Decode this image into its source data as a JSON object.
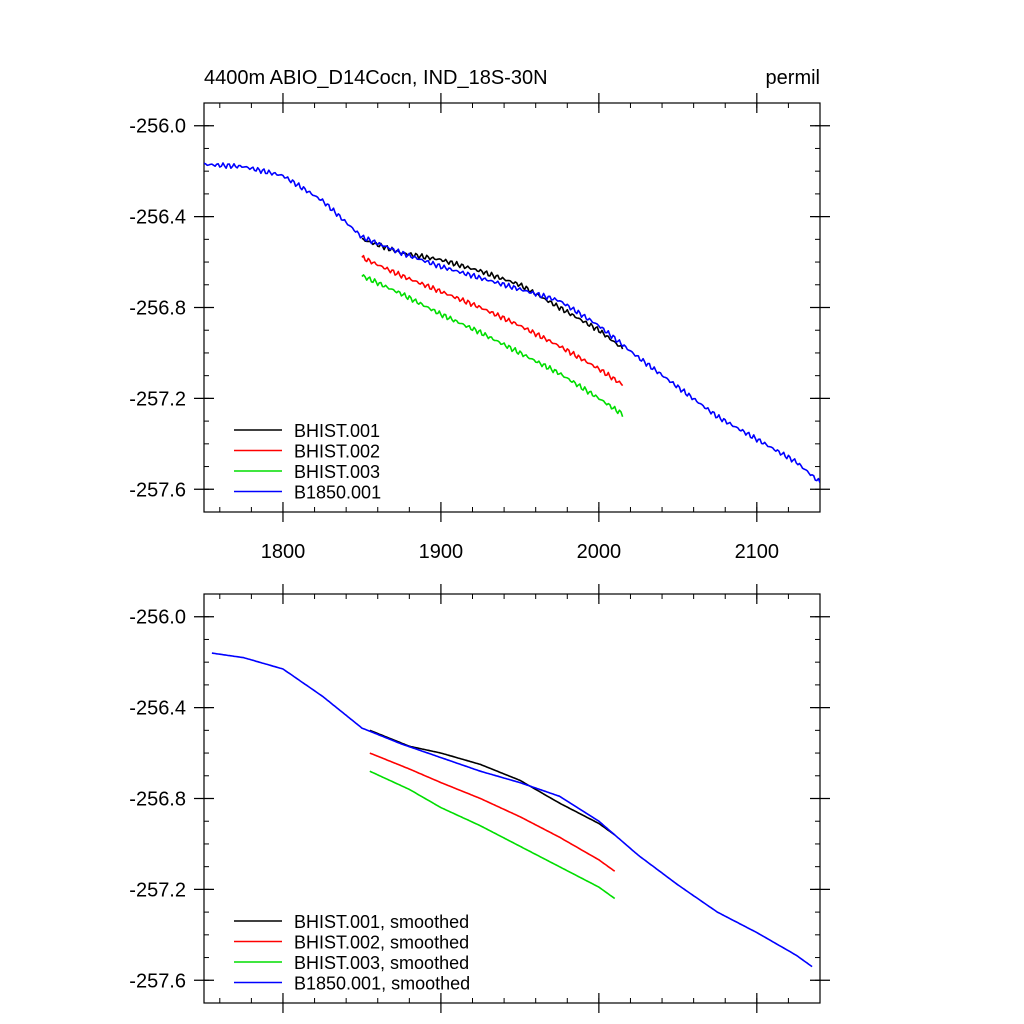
{
  "chart_data": [
    {
      "type": "line",
      "title": "4400m ABIO_D14Cocn, IND_18S-30N",
      "units": "permil",
      "xlim": [
        1750,
        2140
      ],
      "ylim": [
        -257.7,
        -255.9
      ],
      "x_ticks": [
        1800,
        1900,
        2000,
        2100
      ],
      "x_tick_labels": [
        "1800",
        "1900",
        "2000",
        "2100"
      ],
      "y_ticks": [
        -256.0,
        -256.4,
        -256.8,
        -257.2,
        -257.6
      ],
      "y_tick_labels": [
        "-256.0",
        "-256.4",
        "-256.8",
        "-257.2",
        "-257.6"
      ],
      "legend_position": "bottom-left",
      "series": [
        {
          "name": "BHIST.001",
          "color": "#000000",
          "x": [
            1850,
            1875,
            1900,
            1925,
            1950,
            1975,
            2000,
            2015
          ],
          "y": [
            -256.5,
            -256.56,
            -256.59,
            -256.64,
            -256.7,
            -256.8,
            -256.9,
            -256.98
          ],
          "noise": 0.012
        },
        {
          "name": "BHIST.002",
          "color": "#ff0000",
          "x": [
            1850,
            1875,
            1900,
            1925,
            1950,
            1975,
            2000,
            2015
          ],
          "y": [
            -256.58,
            -256.66,
            -256.73,
            -256.8,
            -256.88,
            -256.97,
            -257.07,
            -257.14
          ],
          "noise": 0.012
        },
        {
          "name": "BHIST.003",
          "color": "#00dd00",
          "x": [
            1850,
            1875,
            1900,
            1925,
            1950,
            1975,
            2000,
            2015
          ],
          "y": [
            -256.66,
            -256.74,
            -256.83,
            -256.91,
            -257.0,
            -257.09,
            -257.2,
            -257.27
          ],
          "noise": 0.012
        },
        {
          "name": "B1850.001",
          "color": "#0000ff",
          "x": [
            1750,
            1775,
            1800,
            1825,
            1850,
            1875,
            1900,
            1925,
            1950,
            1975,
            2000,
            2025,
            2050,
            2075,
            2100,
            2125,
            2140
          ],
          "y": [
            -256.17,
            -256.18,
            -256.22,
            -256.33,
            -256.49,
            -256.56,
            -256.62,
            -256.67,
            -256.72,
            -256.77,
            -256.88,
            -257.02,
            -257.15,
            -257.28,
            -257.38,
            -257.48,
            -257.57
          ],
          "noise": 0.012
        }
      ]
    },
    {
      "type": "line",
      "xlim": [
        1750,
        2140
      ],
      "ylim": [
        -257.7,
        -255.9
      ],
      "x_ticks": [
        1800,
        1900,
        2000,
        2100
      ],
      "y_ticks": [
        -256.0,
        -256.4,
        -256.8,
        -257.2,
        -257.6
      ],
      "y_tick_labels": [
        "-256.0",
        "-256.4",
        "-256.8",
        "-257.2",
        "-257.6"
      ],
      "legend_position": "bottom-left",
      "series": [
        {
          "name": "BHIST.001, smoothed",
          "color": "#000000",
          "x": [
            1855,
            1880,
            1900,
            1925,
            1950,
            1975,
            2000,
            2010
          ],
          "y": [
            -256.5,
            -256.57,
            -256.6,
            -256.65,
            -256.72,
            -256.82,
            -256.91,
            -256.96
          ],
          "noise": 0
        },
        {
          "name": "BHIST.002, smoothed",
          "color": "#ff0000",
          "x": [
            1855,
            1880,
            1900,
            1925,
            1950,
            1975,
            2000,
            2010
          ],
          "y": [
            -256.6,
            -256.67,
            -256.73,
            -256.8,
            -256.88,
            -256.97,
            -257.07,
            -257.12
          ],
          "noise": 0
        },
        {
          "name": "BHIST.003, smoothed",
          "color": "#00dd00",
          "x": [
            1855,
            1880,
            1900,
            1925,
            1950,
            1975,
            2000,
            2010
          ],
          "y": [
            -256.68,
            -256.76,
            -256.84,
            -256.92,
            -257.01,
            -257.1,
            -257.19,
            -257.24
          ],
          "noise": 0
        },
        {
          "name": "B1850.001, smoothed",
          "color": "#0000ff",
          "x": [
            1755,
            1775,
            1800,
            1825,
            1850,
            1875,
            1900,
            1925,
            1950,
            1975,
            2000,
            2025,
            2050,
            2075,
            2100,
            2125,
            2135
          ],
          "y": [
            -256.16,
            -256.18,
            -256.23,
            -256.35,
            -256.49,
            -256.56,
            -256.62,
            -256.68,
            -256.73,
            -256.79,
            -256.9,
            -257.05,
            -257.18,
            -257.3,
            -257.39,
            -257.49,
            -257.54
          ],
          "noise": 0
        }
      ]
    }
  ]
}
